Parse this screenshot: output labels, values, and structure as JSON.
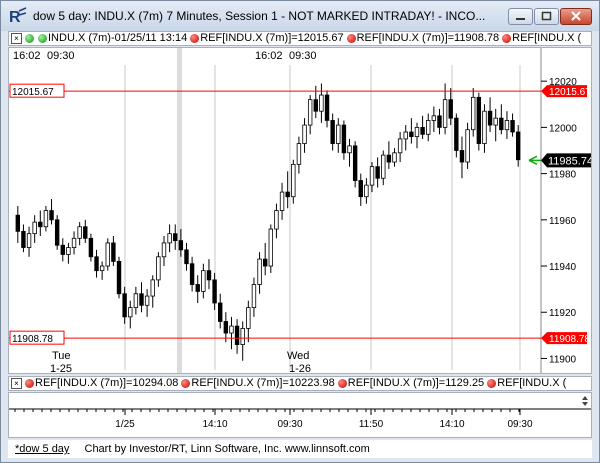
{
  "window": {
    "title": "dow 5 day: INDU.X (7m) 7 Minutes, Session 1 - NOT MARKED INTRADAY! - INCO..."
  },
  "top_bar": {
    "symbol_label": "INDU.X (7m)-01/25/11 13:14",
    "ref_items": [
      "REF[INDU.X (7m)]=12015.67",
      "REF[INDU.X (7m)]=11908.78",
      "REF[INDU.X ("
    ]
  },
  "bottom_bar": {
    "ref_items": [
      "REF[INDU.X (7m)]=10294.08",
      "REF[INDU.X (7m)]=10223.98",
      "REF[INDU.X (7m)]=1129.25",
      "REF[INDU.X ("
    ]
  },
  "chart_top_labels": [
    "16:02",
    "09:30",
    "16:02",
    "09:30"
  ],
  "chart_data": {
    "type": "candlestick",
    "ylim": [
      11895,
      12027
    ],
    "y_ticks": [
      11900,
      11920,
      11940,
      11960,
      11980,
      12000,
      12020
    ],
    "reference_lines": [
      {
        "value": 12015.67,
        "label": "12015.67",
        "color": "#ff0000"
      },
      {
        "value": 11908.78,
        "label": "11908.78",
        "color": "#ff0000"
      }
    ],
    "last_price": {
      "value": 11985.74,
      "label": "11985.74"
    },
    "day_labels": [
      {
        "day": "Tue",
        "date": "1-25"
      },
      {
        "day": "Wed",
        "date": "1-26"
      }
    ],
    "x_tick_labels": [
      "1/25",
      "14:10",
      "09:30",
      "11:50",
      "14:10",
      "09:30"
    ],
    "candles": [
      {
        "o": 11962,
        "h": 11966,
        "l": 11950,
        "c": 11955
      },
      {
        "o": 11955,
        "h": 11958,
        "l": 11946,
        "c": 11948
      },
      {
        "o": 11948,
        "h": 11957,
        "l": 11944,
        "c": 11954
      },
      {
        "o": 11954,
        "h": 11962,
        "l": 11950,
        "c": 11959
      },
      {
        "o": 11959,
        "h": 11964,
        "l": 11953,
        "c": 11957
      },
      {
        "o": 11957,
        "h": 11966,
        "l": 11955,
        "c": 11964
      },
      {
        "o": 11964,
        "h": 11969,
        "l": 11958,
        "c": 11960
      },
      {
        "o": 11960,
        "h": 11962,
        "l": 11947,
        "c": 11949
      },
      {
        "o": 11949,
        "h": 11952,
        "l": 11942,
        "c": 11945
      },
      {
        "o": 11945,
        "h": 11950,
        "l": 11941,
        "c": 11948
      },
      {
        "o": 11948,
        "h": 11955,
        "l": 11945,
        "c": 11952
      },
      {
        "o": 11952,
        "h": 11959,
        "l": 11949,
        "c": 11957
      },
      {
        "o": 11957,
        "h": 11960,
        "l": 11950,
        "c": 11952
      },
      {
        "o": 11952,
        "h": 11954,
        "l": 11942,
        "c": 11944
      },
      {
        "o": 11944,
        "h": 11947,
        "l": 11935,
        "c": 11938
      },
      {
        "o": 11938,
        "h": 11942,
        "l": 11934,
        "c": 11940
      },
      {
        "o": 11940,
        "h": 11952,
        "l": 11938,
        "c": 11950
      },
      {
        "o": 11950,
        "h": 11953,
        "l": 11940,
        "c": 11942
      },
      {
        "o": 11942,
        "h": 11944,
        "l": 11926,
        "c": 11928
      },
      {
        "o": 11928,
        "h": 11931,
        "l": 11915,
        "c": 11918
      },
      {
        "o": 11918,
        "h": 11925,
        "l": 11913,
        "c": 11922
      },
      {
        "o": 11922,
        "h": 11931,
        "l": 11919,
        "c": 11928
      },
      {
        "o": 11928,
        "h": 11933,
        "l": 11920,
        "c": 11923
      },
      {
        "o": 11923,
        "h": 11930,
        "l": 11918,
        "c": 11927
      },
      {
        "o": 11927,
        "h": 11936,
        "l": 11922,
        "c": 11934
      },
      {
        "o": 11934,
        "h": 11946,
        "l": 11931,
        "c": 11944
      },
      {
        "o": 11944,
        "h": 11953,
        "l": 11940,
        "c": 11950
      },
      {
        "o": 11950,
        "h": 11958,
        "l": 11946,
        "c": 11954
      },
      {
        "o": 11954,
        "h": 11958,
        "l": 11947,
        "c": 11951
      },
      {
        "o": 11951,
        "h": 11956,
        "l": 11944,
        "c": 11947
      },
      {
        "o": 11947,
        "h": 11950,
        "l": 11938,
        "c": 11941
      },
      {
        "o": 11941,
        "h": 11944,
        "l": 11929,
        "c": 11932
      },
      {
        "o": 11932,
        "h": 11936,
        "l": 11924,
        "c": 11929
      },
      {
        "o": 11929,
        "h": 11941,
        "l": 11926,
        "c": 11938
      },
      {
        "o": 11938,
        "h": 11943,
        "l": 11930,
        "c": 11934
      },
      {
        "o": 11934,
        "h": 11937,
        "l": 11921,
        "c": 11924
      },
      {
        "o": 11924,
        "h": 11928,
        "l": 11913,
        "c": 11916
      },
      {
        "o": 11916,
        "h": 11920,
        "l": 11907,
        "c": 11911
      },
      {
        "o": 11911,
        "h": 11918,
        "l": 11904,
        "c": 11914
      },
      {
        "o": 11914,
        "h": 11917,
        "l": 11902,
        "c": 11906
      },
      {
        "o": 11906,
        "h": 11916,
        "l": 11899,
        "c": 11913
      },
      {
        "o": 11913,
        "h": 11925,
        "l": 11907,
        "c": 11922
      },
      {
        "o": 11922,
        "h": 11935,
        "l": 11918,
        "c": 11932
      },
      {
        "o": 11932,
        "h": 11946,
        "l": 11928,
        "c": 11943
      },
      {
        "o": 11943,
        "h": 11950,
        "l": 11936,
        "c": 11940
      },
      {
        "o": 11940,
        "h": 11958,
        "l": 11937,
        "c": 11956
      },
      {
        "o": 11956,
        "h": 11967,
        "l": 11952,
        "c": 11964
      },
      {
        "o": 11964,
        "h": 11976,
        "l": 11960,
        "c": 11972
      },
      {
        "o": 11972,
        "h": 11981,
        "l": 11965,
        "c": 11970
      },
      {
        "o": 11970,
        "h": 11986,
        "l": 11967,
        "c": 11984
      },
      {
        "o": 11984,
        "h": 11996,
        "l": 11980,
        "c": 11993
      },
      {
        "o": 11993,
        "h": 12004,
        "l": 11989,
        "c": 12001
      },
      {
        "o": 12001,
        "h": 12014,
        "l": 11997,
        "c": 12012
      },
      {
        "o": 12012,
        "h": 12018,
        "l": 12004,
        "c": 12007
      },
      {
        "o": 12007,
        "h": 12019,
        "l": 12002,
        "c": 12014
      },
      {
        "o": 12014,
        "h": 12016,
        "l": 12000,
        "c": 12003
      },
      {
        "o": 12003,
        "h": 12006,
        "l": 11990,
        "c": 11993
      },
      {
        "o": 11993,
        "h": 12004,
        "l": 11989,
        "c": 12001
      },
      {
        "o": 12001,
        "h": 12003,
        "l": 11986,
        "c": 11989
      },
      {
        "o": 11989,
        "h": 11995,
        "l": 11983,
        "c": 11992
      },
      {
        "o": 11992,
        "h": 11994,
        "l": 11974,
        "c": 11977
      },
      {
        "o": 11977,
        "h": 11980,
        "l": 11966,
        "c": 11970
      },
      {
        "o": 11970,
        "h": 11978,
        "l": 11967,
        "c": 11975
      },
      {
        "o": 11975,
        "h": 11985,
        "l": 11972,
        "c": 11983
      },
      {
        "o": 11983,
        "h": 11987,
        "l": 11974,
        "c": 11978
      },
      {
        "o": 11978,
        "h": 11990,
        "l": 11975,
        "c": 11988
      },
      {
        "o": 11988,
        "h": 11994,
        "l": 11982,
        "c": 11985
      },
      {
        "o": 11985,
        "h": 11991,
        "l": 11983,
        "c": 11989
      },
      {
        "o": 11989,
        "h": 11998,
        "l": 11985,
        "c": 11995
      },
      {
        "o": 11995,
        "h": 12001,
        "l": 11990,
        "c": 11998
      },
      {
        "o": 11998,
        "h": 12004,
        "l": 11993,
        "c": 11996
      },
      {
        "o": 11996,
        "h": 12002,
        "l": 11991,
        "c": 12000
      },
      {
        "o": 12000,
        "h": 12005,
        "l": 11995,
        "c": 11997
      },
      {
        "o": 11997,
        "h": 12006,
        "l": 11994,
        "c": 12003
      },
      {
        "o": 12003,
        "h": 12009,
        "l": 11998,
        "c": 12005
      },
      {
        "o": 12005,
        "h": 12008,
        "l": 11997,
        "c": 12000
      },
      {
        "o": 12000,
        "h": 12019,
        "l": 11997,
        "c": 12012
      },
      {
        "o": 12012,
        "h": 12017,
        "l": 12001,
        "c": 12004
      },
      {
        "o": 12004,
        "h": 12006,
        "l": 11987,
        "c": 11990
      },
      {
        "o": 11990,
        "h": 11996,
        "l": 11978,
        "c": 11985
      },
      {
        "o": 11985,
        "h": 12002,
        "l": 11982,
        "c": 11999
      },
      {
        "o": 11999,
        "h": 12017,
        "l": 11996,
        "c": 12013
      },
      {
        "o": 12013,
        "h": 12015,
        "l": 11990,
        "c": 11993
      },
      {
        "o": 11993,
        "h": 12010,
        "l": 11989,
        "c": 12007
      },
      {
        "o": 12007,
        "h": 12013,
        "l": 11998,
        "c": 12001
      },
      {
        "o": 12001,
        "h": 12008,
        "l": 11994,
        "c": 12004
      },
      {
        "o": 12004,
        "h": 12010,
        "l": 11997,
        "c": 11999
      },
      {
        "o": 11999,
        "h": 12007,
        "l": 11995,
        "c": 12003
      },
      {
        "o": 12003,
        "h": 12006,
        "l": 11996,
        "c": 11998
      },
      {
        "o": 11998,
        "h": 12001,
        "l": 11983,
        "c": 11986
      }
    ]
  },
  "status_bar": {
    "tab": "*dow 5 day",
    "credit": "Chart by Investor/RT, Linn Software, Inc. www.linnsoft.com"
  }
}
